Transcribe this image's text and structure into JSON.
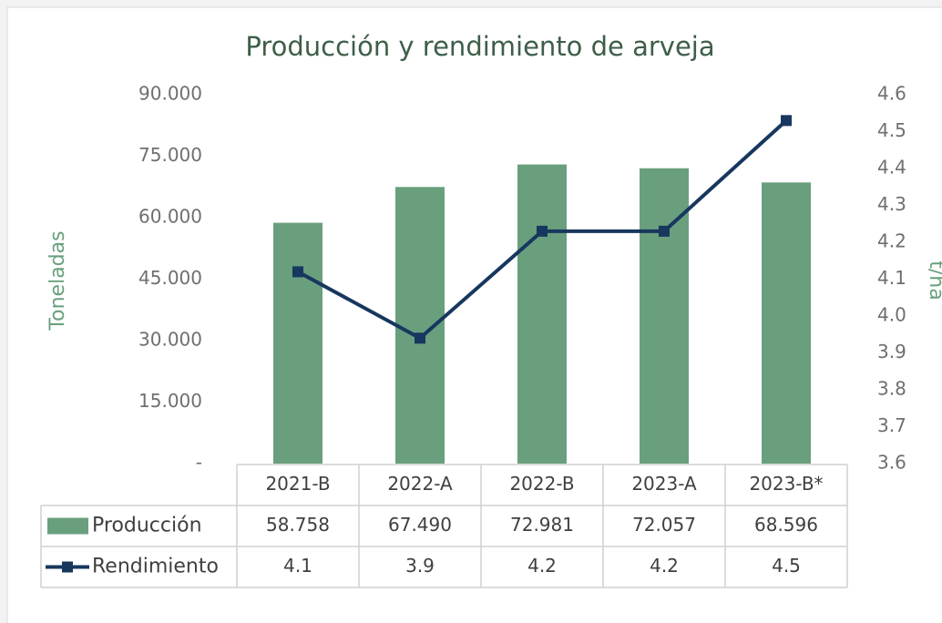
{
  "chart_data": {
    "type": "bar+line",
    "title": "Producción y rendimiento de arveja",
    "ylabel": "Toneladas",
    "y2label": "t/ha",
    "categories": [
      "2021-B",
      "2022-A",
      "2022-B",
      "2023-A",
      "2023-B*"
    ],
    "series": [
      {
        "name": "Producción",
        "type": "bar",
        "color": "#6a9f7e",
        "values": [
          58758,
          67490,
          72981,
          72057,
          68596
        ],
        "value_labels": [
          "58.758",
          "67.490",
          "72.981",
          "72.057",
          "68.596"
        ]
      },
      {
        "name": "Rendimiento",
        "type": "line",
        "axis": "y2",
        "color": "#17375e",
        "values": [
          4.12,
          3.94,
          4.23,
          4.23,
          4.53
        ],
        "value_labels": [
          "4.1",
          "3.9",
          "4.2",
          "4.2",
          "4.5"
        ]
      }
    ],
    "ylim": [
      0,
      90000
    ],
    "yticks": [
      {
        "value": 0,
        "label": "-"
      },
      {
        "value": 15000,
        "label": "15.000"
      },
      {
        "value": 30000,
        "label": "30.000"
      },
      {
        "value": 45000,
        "label": "45.000"
      },
      {
        "value": 60000,
        "label": "60.000"
      },
      {
        "value": 75000,
        "label": "75.000"
      },
      {
        "value": 90000,
        "label": "90.000"
      }
    ],
    "y2lim": [
      3.6,
      4.6
    ],
    "y2ticks": [
      3.6,
      3.7,
      3.8,
      3.9,
      {
        "value": 4,
        "label": "4.0"
      },
      4.1,
      4.2,
      4.3,
      4.4,
      4.5,
      4.6
    ]
  }
}
